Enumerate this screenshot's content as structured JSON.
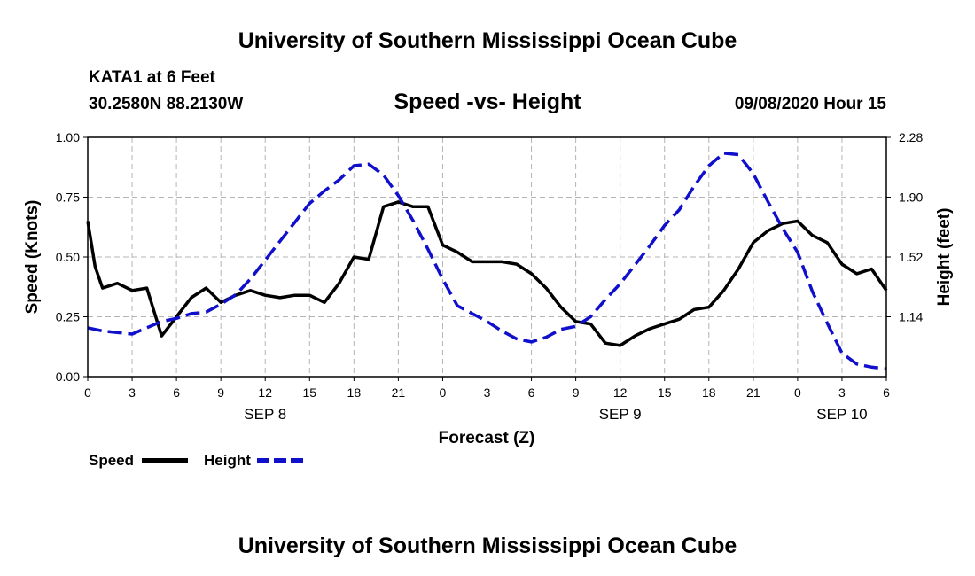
{
  "header": {
    "title": "University of Southern Mississippi Ocean Cube",
    "station": "KATA1 at 6 Feet",
    "coords": "30.2580N 88.2130W",
    "chart_title": "Speed -vs- Height",
    "date": "09/08/2020 Hour 15"
  },
  "footer": {
    "title": "University of Southern Mississippi Ocean Cube"
  },
  "colors": {
    "speed": "#000000",
    "height": "#1010cc",
    "grid": "#b4b4b4"
  },
  "chart_data": {
    "type": "line",
    "title": "Speed -vs- Height",
    "xlabel": "Forecast (Z)",
    "ylabel": "Speed (Knots)",
    "ylabel_right": "Height (feet)",
    "xlim": [
      0,
      54
    ],
    "ylim": [
      0,
      1.0
    ],
    "ylim_right": [
      0.76,
      2.28
    ],
    "x_ticks": [
      0,
      3,
      6,
      9,
      12,
      15,
      18,
      21,
      24,
      27,
      30,
      33,
      36,
      39,
      42,
      45,
      48,
      51,
      54
    ],
    "x_tick_labels": [
      "0",
      "3",
      "6",
      "9",
      "12",
      "15",
      "18",
      "21",
      "0",
      "3",
      "6",
      "9",
      "12",
      "15",
      "18",
      "21",
      "0",
      "3",
      "6"
    ],
    "y_ticks": [
      0,
      0.25,
      0.5,
      0.75,
      1.0
    ],
    "y_tick_labels": [
      "0.00",
      "0.25",
      "0.50",
      "0.75",
      "1.00"
    ],
    "y_right_ticks": [
      1.14,
      1.52,
      1.9,
      2.28
    ],
    "y_right_tick_labels": [
      "1.14",
      "1.52",
      "1.90",
      "2.28"
    ],
    "day_labels": [
      {
        "x": 12,
        "label": "SEP 8"
      },
      {
        "x": 36,
        "label": "SEP 9"
      },
      {
        "x": 51,
        "label": "SEP 10"
      }
    ],
    "grid": true,
    "legend": [
      {
        "name": "Speed",
        "style": "solid"
      },
      {
        "name": "Height",
        "style": "dashed"
      }
    ],
    "series": [
      {
        "name": "Speed",
        "axis": "left",
        "style": "solid",
        "x": [
          0,
          0.5,
          1,
          2,
          3,
          4,
          5,
          6,
          7,
          8,
          9,
          10,
          11,
          12,
          13,
          14,
          15,
          16,
          17,
          18,
          19,
          20,
          21,
          22,
          23,
          24,
          25,
          26,
          27,
          28,
          29,
          30,
          31,
          32,
          33,
          34,
          35,
          36,
          37,
          38,
          39,
          40,
          41,
          42,
          43,
          44,
          45,
          46,
          47,
          48,
          49,
          50,
          51,
          52,
          53,
          54
        ],
        "values": [
          0.65,
          0.46,
          0.37,
          0.39,
          0.36,
          0.37,
          0.17,
          0.25,
          0.33,
          0.37,
          0.31,
          0.34,
          0.36,
          0.34,
          0.33,
          0.34,
          0.34,
          0.31,
          0.39,
          0.5,
          0.49,
          0.71,
          0.73,
          0.71,
          0.71,
          0.55,
          0.52,
          0.48,
          0.48,
          0.48,
          0.47,
          0.43,
          0.37,
          0.29,
          0.23,
          0.22,
          0.14,
          0.13,
          0.17,
          0.2,
          0.22,
          0.24,
          0.28,
          0.29,
          0.36,
          0.45,
          0.56,
          0.61,
          0.64,
          0.65,
          0.59,
          0.56,
          0.47,
          0.43,
          0.45,
          0.36
        ]
      },
      {
        "name": "Height",
        "axis": "right",
        "style": "dashed",
        "x": [
          0,
          1,
          2,
          3,
          4,
          5,
          6,
          7,
          8,
          9,
          10,
          11,
          12,
          13,
          14,
          15,
          16,
          17,
          18,
          19,
          20,
          21,
          22,
          23,
          24,
          25,
          26,
          27,
          28,
          29,
          30,
          31,
          32,
          33,
          34,
          35,
          36,
          37,
          38,
          39,
          40,
          41,
          42,
          43,
          44,
          45,
          46,
          47,
          48,
          49,
          50,
          51,
          52,
          53,
          54
        ],
        "values": [
          1.07,
          1.05,
          1.04,
          1.03,
          1.07,
          1.11,
          1.13,
          1.16,
          1.17,
          1.22,
          1.28,
          1.38,
          1.5,
          1.62,
          1.74,
          1.86,
          1.94,
          2.01,
          2.1,
          2.11,
          2.04,
          1.91,
          1.75,
          1.57,
          1.38,
          1.21,
          1.16,
          1.11,
          1.05,
          1.0,
          0.98,
          1.01,
          1.06,
          1.08,
          1.14,
          1.25,
          1.35,
          1.47,
          1.59,
          1.72,
          1.82,
          1.97,
          2.1,
          2.18,
          2.17,
          2.05,
          1.87,
          1.7,
          1.55,
          1.3,
          1.1,
          0.91,
          0.84,
          0.82,
          0.81
        ]
      }
    ]
  }
}
